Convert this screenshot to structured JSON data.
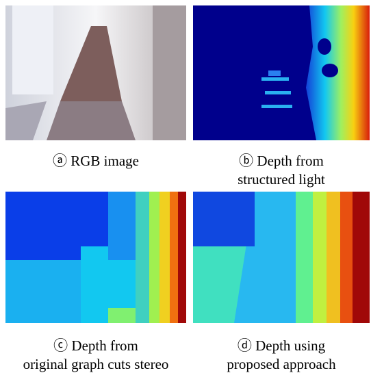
{
  "panels": [
    {
      "caption": [
        "ⓐ RGB image"
      ]
    },
    {
      "caption": [
        "ⓑ Depth from",
        "structured light"
      ]
    },
    {
      "caption": [
        "ⓒ Depth from",
        "original graph cuts stereo"
      ]
    },
    {
      "caption": [
        "ⓓ Depth using",
        "proposed approach"
      ]
    }
  ]
}
